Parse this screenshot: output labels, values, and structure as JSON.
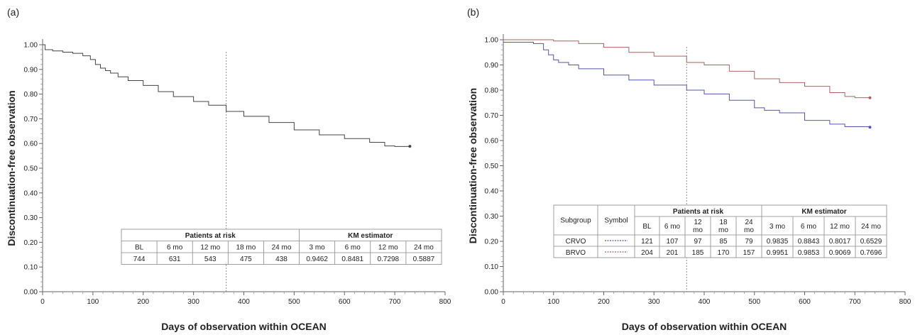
{
  "chart_data": [
    {
      "panel_label": "(a)",
      "type": "line",
      "step": true,
      "xlabel": "Days of observation within OCEAN",
      "ylabel": "Discontinuation-free observation",
      "xlim": [
        0,
        800
      ],
      "ylim": [
        0.0,
        1.0
      ],
      "x_ticks": [
        "0",
        "100",
        "200",
        "300",
        "400",
        "500",
        "600",
        "700",
        "800"
      ],
      "y_ticks": [
        "0.00",
        "0.10",
        "0.20",
        "0.30",
        "0.40",
        "0.50",
        "0.60",
        "0.70",
        "0.80",
        "0.90",
        "1.00"
      ],
      "reference_line_x": 365,
      "series": [
        {
          "color": "#444444",
          "x": [
            0,
            5,
            20,
            40,
            60,
            80,
            95,
            105,
            115,
            125,
            135,
            150,
            170,
            200,
            230,
            260,
            300,
            330,
            365,
            400,
            450,
            500,
            550,
            600,
            650,
            680,
            700,
            730
          ],
          "y": [
            1.0,
            0.98,
            0.975,
            0.97,
            0.965,
            0.955,
            0.94,
            0.92,
            0.905,
            0.895,
            0.885,
            0.87,
            0.855,
            0.835,
            0.81,
            0.79,
            0.77,
            0.755,
            0.73,
            0.71,
            0.685,
            0.655,
            0.635,
            0.62,
            0.605,
            0.59,
            0.588,
            0.5887
          ]
        }
      ],
      "table": {
        "group_headers": [
          "Patients at risk",
          "KM estimator"
        ],
        "columns": [
          "BL",
          "6 mo",
          "12 mo",
          "18 mo",
          "24 mo",
          "3 mo",
          "6 mo",
          "12 mo",
          "24 mo"
        ],
        "row": [
          "744",
          "631",
          "543",
          "475",
          "438",
          "0.9462",
          "0.8481",
          "0.7298",
          "0.5887"
        ]
      }
    },
    {
      "panel_label": "(b)",
      "type": "line",
      "step": true,
      "xlabel": "Days of observation within OCEAN",
      "ylabel": "Discontinuation-free observation",
      "xlim": [
        0,
        800
      ],
      "ylim": [
        0.0,
        1.0
      ],
      "x_ticks": [
        "0",
        "100",
        "200",
        "300",
        "400",
        "500",
        "600",
        "700",
        "800"
      ],
      "y_ticks": [
        "0.00",
        "0.10",
        "0.20",
        "0.30",
        "0.40",
        "0.50",
        "0.60",
        "0.70",
        "0.80",
        "0.90",
        "1.00"
      ],
      "reference_line_x": 365,
      "series": [
        {
          "name": "CRVO",
          "color": "#5555b0",
          "x": [
            0,
            60,
            80,
            90,
            100,
            110,
            130,
            150,
            200,
            250,
            300,
            365,
            400,
            450,
            500,
            520,
            550,
            600,
            650,
            680,
            730
          ],
          "y": [
            0.99,
            0.985,
            0.96,
            0.94,
            0.92,
            0.91,
            0.9,
            0.885,
            0.86,
            0.84,
            0.82,
            0.8,
            0.785,
            0.76,
            0.73,
            0.72,
            0.71,
            0.68,
            0.665,
            0.655,
            0.6529
          ]
        },
        {
          "name": "BRVO",
          "color": "#b06060",
          "x": [
            0,
            100,
            150,
            200,
            250,
            300,
            365,
            400,
            450,
            500,
            550,
            600,
            650,
            680,
            700,
            730
          ],
          "y": [
            1.0,
            0.995,
            0.985,
            0.97,
            0.95,
            0.935,
            0.91,
            0.9,
            0.875,
            0.845,
            0.83,
            0.815,
            0.79,
            0.775,
            0.77,
            0.7696
          ]
        }
      ],
      "table": {
        "headers": [
          "Subgroup",
          "Symbol"
        ],
        "group_headers": [
          "Patients at risk",
          "KM estimator"
        ],
        "columns": [
          "BL",
          "6 mo",
          "12 mo",
          "18 mo",
          "24 mo",
          "3 mo",
          "6 mo",
          "12 mo",
          "24 mo"
        ],
        "rows": [
          {
            "label": "CRVO",
            "color": "#5555b0",
            "values": [
              "121",
              "107",
              "97",
              "85",
              "79",
              "0.9835",
              "0.8843",
              "0.8017",
              "0.6529"
            ]
          },
          {
            "label": "BRVO",
            "color": "#b06060",
            "values": [
              "204",
              "201",
              "185",
              "170",
              "157",
              "0.9951",
              "0.9853",
              "0.9069",
              "0.7696"
            ]
          }
        ]
      }
    }
  ]
}
